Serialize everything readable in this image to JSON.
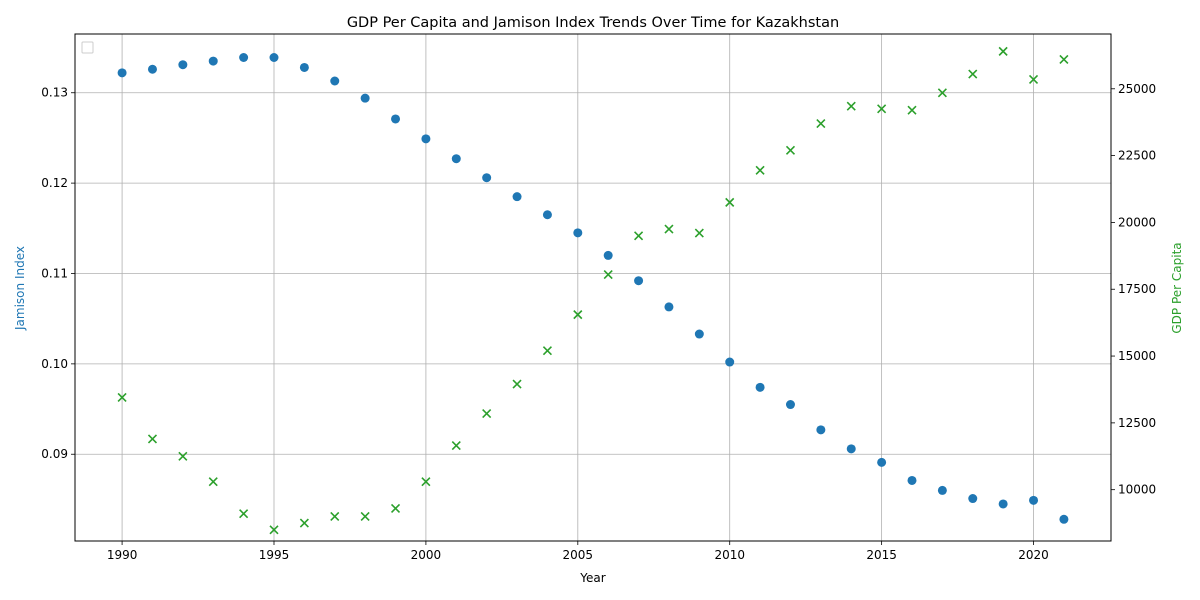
{
  "chart_data": {
    "type": "scatter",
    "title": "GDP Per Capita and Jamison Index Trends Over Time for Kazakhstan",
    "xlabel": "Year",
    "ylabel_left": "Jamison Index",
    "ylabel_right": "GDP Per Capita",
    "xlim": [
      1988.45,
      1992.55
    ],
    "xlim_full": [
      1988.45,
      2022.55
    ],
    "ylim_left": [
      0.0804,
      0.1365
    ],
    "ylim_right": [
      8080,
      27050
    ],
    "x_ticks": [
      1990,
      1995,
      2000,
      2005,
      2010,
      2015,
      2020
    ],
    "y_left_ticks": [
      0.09,
      0.1,
      0.11,
      0.12,
      0.13
    ],
    "y_right_ticks": [
      10000,
      12500,
      15000,
      17500,
      20000,
      22500,
      25000
    ],
    "grid": true,
    "legend_placement": "upper-left",
    "years": [
      1990,
      1991,
      1992,
      1993,
      1994,
      1995,
      1996,
      1997,
      1998,
      1999,
      2000,
      2001,
      2002,
      2003,
      2004,
      2005,
      2006,
      2007,
      2008,
      2009,
      2010,
      2011,
      2012,
      2013,
      2014,
      2015,
      2016,
      2017,
      2018,
      2019,
      2020,
      2021
    ],
    "series": [
      {
        "name": "Jamison Index",
        "axis": "left",
        "marker": "circle",
        "color": "#1f77b4",
        "values": [
          0.1322,
          0.1326,
          0.1331,
          0.1335,
          0.1339,
          0.1339,
          0.1328,
          0.1313,
          0.1294,
          0.1271,
          0.1249,
          0.1227,
          0.1206,
          0.1185,
          0.1165,
          0.1145,
          0.112,
          0.1092,
          0.1063,
          0.1033,
          0.1002,
          0.0974,
          0.0955,
          0.0927,
          0.0906,
          0.0891,
          0.0871,
          0.086,
          0.0851,
          0.0845,
          0.0849,
          0.0828
        ]
      },
      {
        "name": "GDP Per Capita",
        "axis": "right",
        "marker": "x",
        "color": "#2ca02c",
        "values": [
          13450,
          11900,
          11250,
          10300,
          9100,
          8500,
          8750,
          9000,
          9000,
          9300,
          10300,
          11650,
          12850,
          13950,
          15200,
          16550,
          18050,
          19500,
          19750,
          19600,
          20750,
          21950,
          22700,
          23700,
          24350,
          24250,
          24200,
          24850,
          25550,
          26400,
          25350,
          26100
        ]
      }
    ]
  }
}
